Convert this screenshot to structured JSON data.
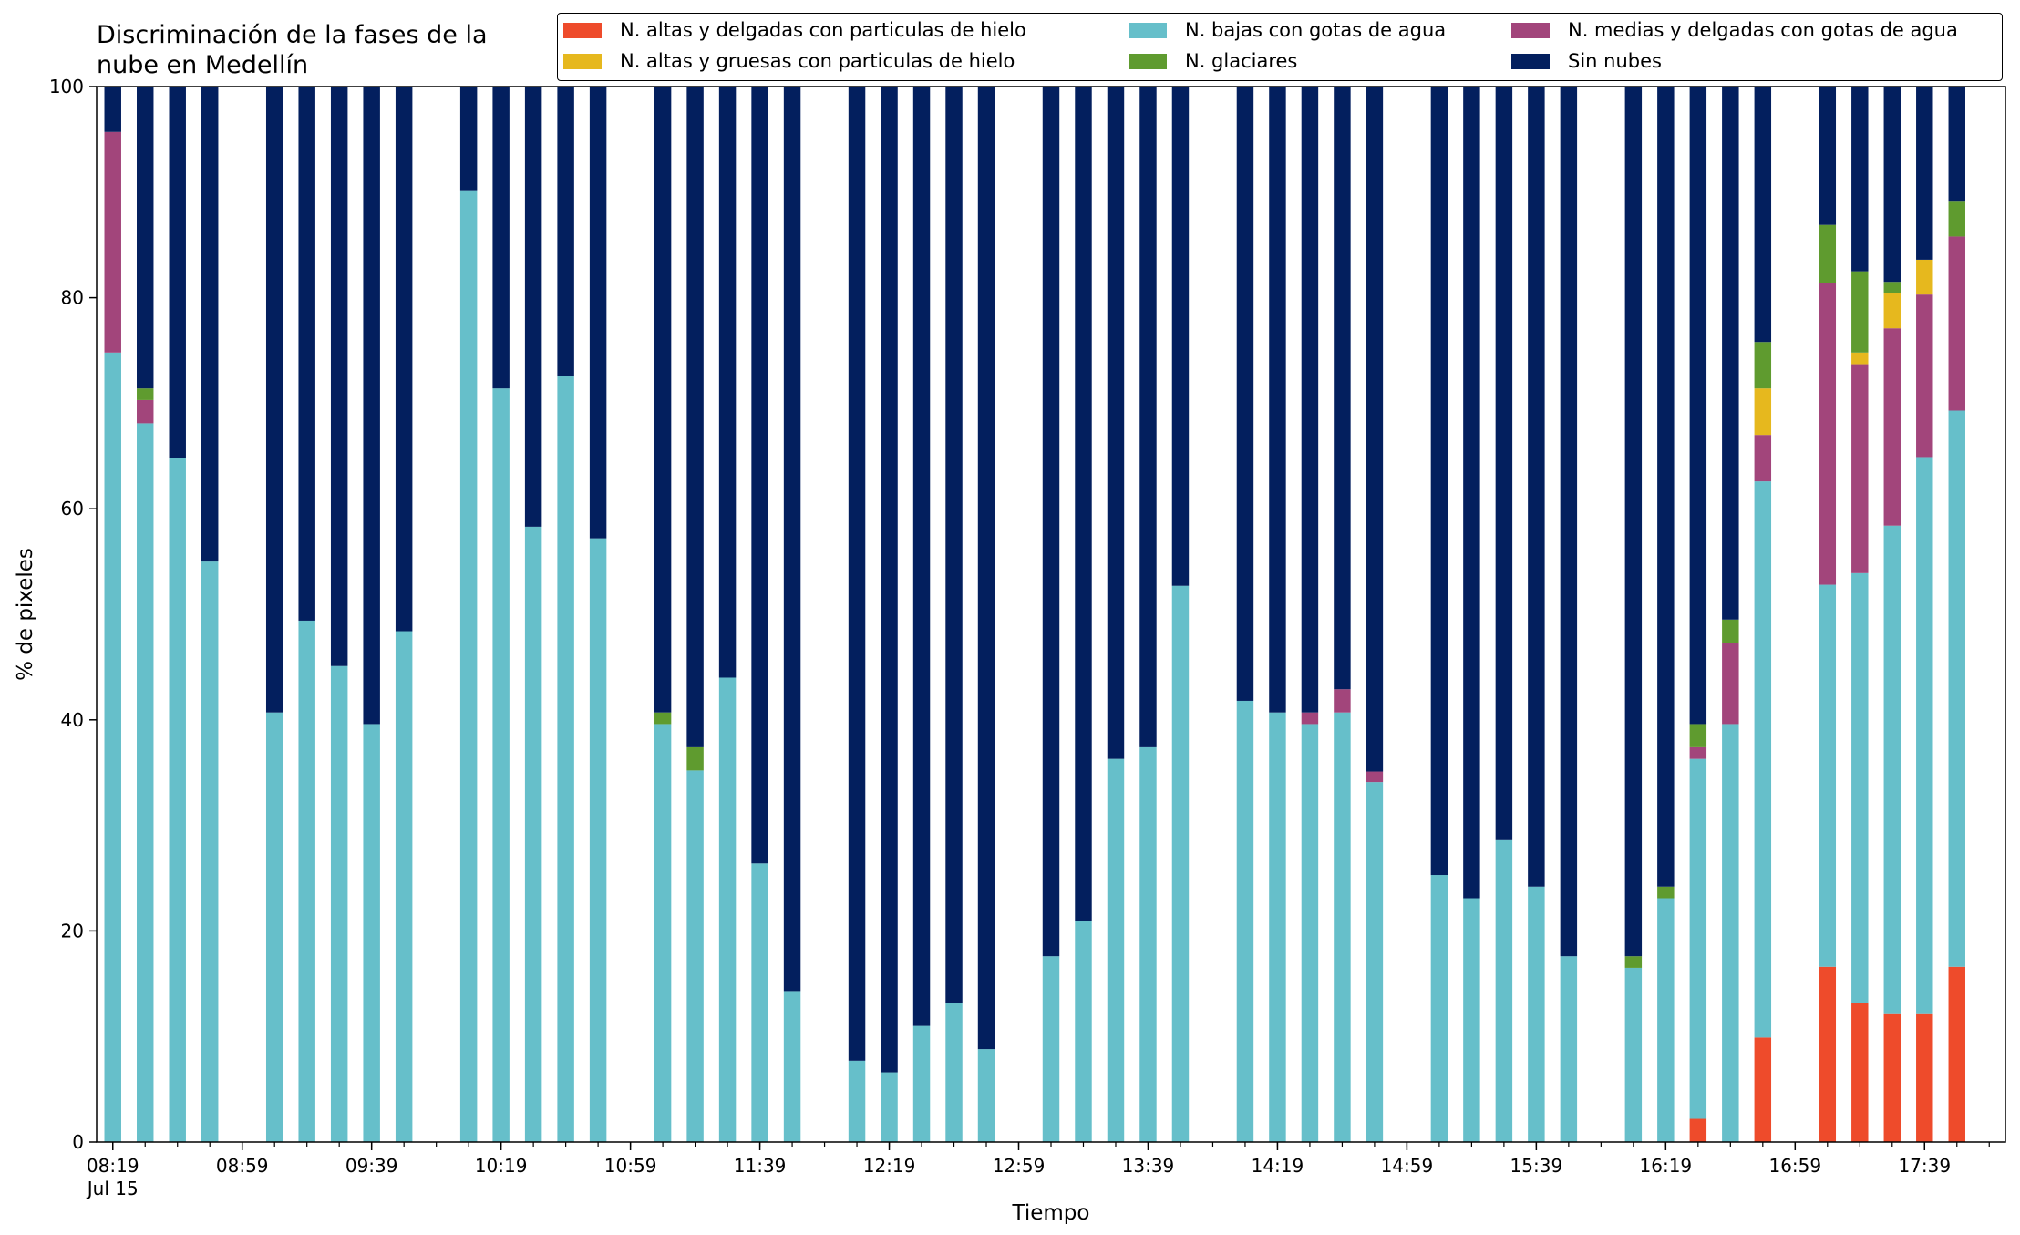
{
  "chart_data": {
    "type": "bar",
    "stacked": true,
    "title": "Discriminación de la fases de la\nnube en Medellín",
    "xlabel": "Tiempo",
    "ylabel": "% de pixeles",
    "ylim": [
      0,
      100
    ],
    "yticks": [
      0,
      20,
      40,
      60,
      80,
      100
    ],
    "xlim_minutes_after_0819": [
      -5,
      585
    ],
    "x_tick_labels": [
      "08:19\nJul 15",
      "08:59",
      "09:39",
      "10:19",
      "10:59",
      "11:39",
      "12:19",
      "12:59",
      "13:39",
      "14:19",
      "14:59",
      "15:39",
      "16:19",
      "16:59",
      "17:39"
    ],
    "x_tick_times": [
      "08:19",
      "08:59",
      "09:39",
      "10:19",
      "10:59",
      "11:39",
      "12:19",
      "12:59",
      "13:39",
      "14:19",
      "14:59",
      "15:39",
      "16:19",
      "16:59",
      "17:39"
    ],
    "x_minor_tick_step_minutes": 10,
    "legend_position": "top-right",
    "legend_order": [
      0,
      3,
      1,
      4,
      2,
      5
    ],
    "x": [
      "08:19",
      "08:29",
      "08:39",
      "08:49",
      "09:09",
      "09:19",
      "09:29",
      "09:39",
      "09:49",
      "10:09",
      "10:19",
      "10:29",
      "10:39",
      "10:49",
      "11:09",
      "11:19",
      "11:29",
      "11:39",
      "11:49",
      "12:09",
      "12:19",
      "12:29",
      "12:39",
      "12:49",
      "13:09",
      "13:19",
      "13:29",
      "13:39",
      "13:49",
      "14:09",
      "14:19",
      "14:29",
      "14:39",
      "14:49",
      "15:09",
      "15:19",
      "15:29",
      "15:39",
      "15:49",
      "16:09",
      "16:19",
      "16:29",
      "16:39",
      "16:49",
      "17:09",
      "17:19",
      "17:29",
      "17:39",
      "17:49"
    ],
    "series": [
      {
        "name": "N. altas y delgadas con particulas de hielo",
        "color": "#ee4b2b",
        "values": [
          0,
          0,
          0,
          0,
          0,
          0,
          0,
          0,
          0,
          0,
          0,
          0,
          0,
          0,
          0,
          0,
          0,
          0,
          0,
          0,
          0,
          0,
          0,
          0,
          0,
          0,
          0,
          0,
          0,
          0,
          0,
          0,
          0,
          0,
          0,
          0,
          0,
          0,
          0,
          0,
          0,
          2.2,
          0,
          9.9,
          16.6,
          13.2,
          12.2,
          12.2,
          16.6
        ]
      },
      {
        "name": "N. bajas con gotas de agua",
        "color": "#66bfca",
        "values": [
          74.8,
          68.1,
          64.8,
          55.0,
          40.7,
          49.4,
          45.1,
          39.6,
          48.4,
          90.1,
          71.4,
          58.3,
          72.6,
          57.2,
          39.6,
          35.2,
          44.0,
          26.4,
          14.3,
          7.7,
          6.6,
          11.0,
          13.2,
          8.8,
          17.6,
          20.9,
          36.3,
          37.4,
          52.7,
          41.8,
          40.7,
          39.6,
          40.7,
          34.1,
          25.3,
          23.1,
          28.6,
          24.2,
          17.6,
          16.5,
          23.1,
          34.1,
          39.6,
          52.7,
          36.2,
          40.7,
          46.2,
          52.7,
          52.7
        ]
      },
      {
        "name": "N. medias y delgadas con gotas de agua",
        "color": "#a2457b",
        "values": [
          20.9,
          2.2,
          0,
          0,
          0,
          0,
          0,
          0,
          0,
          0,
          0,
          0,
          0,
          0,
          0,
          0,
          0,
          0,
          0,
          0,
          0,
          0,
          0,
          0,
          0,
          0,
          0,
          0,
          0,
          0,
          0,
          1.1,
          2.2,
          1.0,
          0,
          0,
          0,
          0,
          0,
          0,
          0,
          1.1,
          7.7,
          4.4,
          28.6,
          19.8,
          18.7,
          15.4,
          16.5
        ]
      },
      {
        "name": "N. altas y gruesas con particulas de hielo",
        "color": "#e6b81e",
        "values": [
          0,
          0,
          0,
          0,
          0,
          0,
          0,
          0,
          0,
          0,
          0,
          0,
          0,
          0,
          0,
          0,
          0,
          0,
          0,
          0,
          0,
          0,
          0,
          0,
          0,
          0,
          0,
          0,
          0,
          0,
          0,
          0,
          0,
          0,
          0,
          0,
          0,
          0,
          0,
          0,
          0,
          0,
          0,
          4.4,
          0,
          1.1,
          3.3,
          3.3,
          0
        ]
      },
      {
        "name": "N. glaciares",
        "color": "#5f9b2f",
        "values": [
          0,
          1.1,
          0,
          0,
          0,
          0,
          0,
          0,
          0,
          0,
          0,
          0,
          0,
          0,
          1.1,
          2.2,
          0,
          0,
          0,
          0,
          0,
          0,
          0,
          0,
          0,
          0,
          0,
          0,
          0,
          0,
          0,
          0,
          0,
          0,
          0,
          0,
          0,
          0,
          0,
          1.1,
          1.1,
          2.2,
          2.2,
          4.4,
          5.5,
          7.7,
          1.1,
          0,
          3.3
        ]
      },
      {
        "name": "Sin nubes",
        "color": "#031f5e",
        "values": [
          4.3,
          28.6,
          35.2,
          45.0,
          59.3,
          50.6,
          54.9,
          60.4,
          51.6,
          9.9,
          28.6,
          41.7,
          27.4,
          42.8,
          59.3,
          62.6,
          56.0,
          73.6,
          85.7,
          92.3,
          93.4,
          89.0,
          86.8,
          91.2,
          82.4,
          79.1,
          63.7,
          62.6,
          47.3,
          58.2,
          59.3,
          59.3,
          57.1,
          64.9,
          74.7,
          76.9,
          71.4,
          75.8,
          82.4,
          82.4,
          75.8,
          60.4,
          50.5,
          24.2,
          13.1,
          17.5,
          18.5,
          16.4,
          10.9
        ]
      }
    ]
  }
}
